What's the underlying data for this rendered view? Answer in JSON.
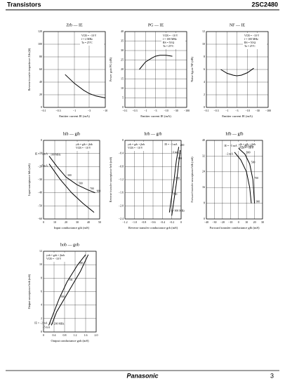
{
  "header": {
    "left": "Transistors",
    "right": "2SC2480"
  },
  "footer": {
    "brand": "Panasonic",
    "page": "3"
  },
  "chart_data": [
    {
      "type": "line",
      "title": "Zrb — IE",
      "x_label": "Emitter current IE (mA)",
      "y_label": "Reverse transfer impedance Zrb (Ω)",
      "xscale": "log",
      "xlim": [
        -0.1,
        -10
      ],
      "xticks": [
        {
          "value": -0.1,
          "label": "−0.1"
        },
        {
          "value": -0.3,
          "label": "−0.3"
        },
        {
          "value": -1,
          "label": "−1"
        },
        {
          "value": -3,
          "label": "−3"
        },
        {
          "value": -10,
          "label": "−10"
        }
      ],
      "ylim": [
        0,
        120
      ],
      "yticks": [
        0,
        20,
        40,
        60,
        80,
        100,
        120
      ],
      "grid": true,
      "note": [
        "VCB = −10 V",
        "f = 2 MHz",
        "Ta = 25°C"
      ],
      "note_corner": "top-right",
      "series": [
        {
          "color": "#000000",
          "x": [
            -0.5,
            -1,
            -2,
            -3,
            -5,
            -10
          ],
          "values": [
            52,
            38,
            27,
            22,
            18,
            15
          ]
        }
      ]
    },
    {
      "type": "line",
      "title": "PG — IE",
      "x_label": "Emitter current IE (mA)",
      "y_label": "Power gain PG (dB)",
      "xscale": "log",
      "xlim": [
        -0.1,
        -100
      ],
      "xticks": [
        {
          "value": -0.1,
          "label": "−0.1"
        },
        {
          "value": -0.3,
          "label": "−0.3"
        },
        {
          "value": -1,
          "label": "−1"
        },
        {
          "value": -3,
          "label": "−3"
        },
        {
          "value": -10,
          "label": "−10"
        },
        {
          "value": -30,
          "label": "−30"
        },
        {
          "value": -100,
          "label": "−100"
        }
      ],
      "ylim": [
        0,
        40
      ],
      "yticks": [
        0,
        5,
        10,
        15,
        20,
        25,
        30,
        35,
        40
      ],
      "grid": true,
      "note": [
        "VCB = −10 V",
        "f = 100 MHz",
        "RS = 50 Ω",
        "Ta = 25°C"
      ],
      "note_corner": "top-right",
      "series": [
        {
          "color": "#000000",
          "x": [
            -0.5,
            -1,
            -2,
            -3,
            -5,
            -10,
            -20
          ],
          "values": [
            20,
            24,
            26,
            27,
            27.5,
            27.5,
            27
          ]
        }
      ]
    },
    {
      "type": "line",
      "title": "NF — IE",
      "x_label": "Emitter current IE (mA)",
      "y_label": "Noise figure NF (dB)",
      "xscale": "log",
      "xlim": [
        -0.1,
        -100
      ],
      "xticks": [
        {
          "value": -0.1,
          "label": "−0.1"
        },
        {
          "value": -0.3,
          "label": "−0.3"
        },
        {
          "value": -1,
          "label": "−1"
        },
        {
          "value": -3,
          "label": "−3"
        },
        {
          "value": -10,
          "label": "−10"
        },
        {
          "value": -30,
          "label": "−30"
        },
        {
          "value": -100,
          "label": "−100"
        }
      ],
      "ylim": [
        0,
        12
      ],
      "yticks": [
        0,
        2,
        4,
        6,
        8,
        10,
        12
      ],
      "grid": true,
      "note": [
        "VCB = −10 V",
        "f = 100 MHz",
        "RS = 50 Ω",
        "Ta = 25°C"
      ],
      "note_corner": "top-right",
      "series": [
        {
          "color": "#000000",
          "x": [
            -0.5,
            -1,
            -2,
            -3,
            -5,
            -10,
            -20
          ],
          "values": [
            6,
            5.4,
            5.1,
            5,
            5.1,
            5.5,
            6.2
          ]
        }
      ]
    },
    {
      "type": "line",
      "title": "hib — gib",
      "x_label": "Input conductance gib (mS)",
      "y_label": "Input susceptance bib (mS)",
      "xscale": "linear",
      "xlim": [
        0,
        50
      ],
      "xticks": [
        0,
        10,
        20,
        30,
        40,
        50
      ],
      "ylim": [
        -60,
        0
      ],
      "yticks": [
        0,
        {
          "value": -10,
          "label": "−10"
        },
        {
          "value": -20,
          "label": "−20"
        },
        {
          "value": -30,
          "label": "−30"
        },
        {
          "value": -40,
          "label": "−40"
        },
        {
          "value": -50,
          "label": "−50"
        },
        {
          "value": -60,
          "label": "−60"
        }
      ],
      "grid": true,
      "note": [
        "yib = gib + jbib",
        "VCB = −10 V"
      ],
      "note_corner": "top-right",
      "series": [
        {
          "name": "IE = −1 mA",
          "color": "#000000",
          "x": [
            5,
            12,
            20,
            30,
            40,
            46
          ],
          "values": [
            -12,
            -20,
            -28,
            -34,
            -38,
            -40
          ],
          "point_labels": [
            "100 MHz",
            null,
            "300",
            "500",
            "700",
            "900"
          ]
        },
        {
          "name": "−5 mA",
          "color": "#000000",
          "x": [
            5,
            15,
            25,
            35,
            45
          ],
          "values": [
            -18,
            -30,
            -40,
            -48,
            -55
          ],
          "point_labels": [
            null,
            null,
            null,
            null,
            null
          ]
        }
      ]
    },
    {
      "type": "line",
      "title": "hrb — grb",
      "x_label": "Reverse transfer conductance grb (mS)",
      "y_label": "Reverse transfer susceptance brb (mS)",
      "xscale": "linear",
      "xlim": [
        -1.2,
        0
      ],
      "xticks": [
        {
          "value": -1.2,
          "label": "−1.2"
        },
        {
          "value": -1,
          "label": "−1.0"
        },
        {
          "value": -0.8,
          "label": "−0.8"
        },
        {
          "value": -0.6,
          "label": "−0.6"
        },
        {
          "value": -0.4,
          "label": "−0.4"
        },
        {
          "value": -0.2,
          "label": "−0.2"
        },
        0
      ],
      "ylim": [
        -2.4,
        0
      ],
      "yticks": [
        0,
        {
          "value": -0.4,
          "label": "−0.4"
        },
        {
          "value": -0.8,
          "label": "−0.8"
        },
        {
          "value": -1.2,
          "label": "−1.2"
        },
        {
          "value": -1.6,
          "label": "−1.6"
        },
        {
          "value": -2,
          "label": "−2.0"
        },
        {
          "value": -2.4,
          "label": "−2.4"
        }
      ],
      "grid": true,
      "note": [
        "yrb = grb + jbrb",
        "VCB = −10 V"
      ],
      "note_corner": "top-left",
      "series": [
        {
          "name": "IE = −1 mA",
          "color": "#000000",
          "x": [
            -0.05,
            -0.1,
            -0.15,
            -0.2,
            -0.25
          ],
          "values": [
            -0.2,
            -0.6,
            -1.2,
            -1.7,
            -2.2
          ],
          "point_labels": [
            "200",
            "300",
            "500",
            "700",
            "f = 900 MHz"
          ]
        },
        {
          "name": "−2 mA",
          "color": "#000000",
          "x": [
            -0.02,
            -0.06,
            -0.1,
            -0.15,
            -0.2
          ],
          "values": [
            -0.3,
            -0.8,
            -1.3,
            -1.8,
            -2.3
          ],
          "point_labels": [
            null,
            null,
            null,
            null,
            null
          ]
        }
      ]
    },
    {
      "type": "line",
      "title": "hfb — gfb",
      "x_label": "Forward transfer conductance gfb (mS)",
      "y_label": "Forward transfer susceptance bfb (mS)",
      "xscale": "linear",
      "xlim": [
        -40,
        30
      ],
      "xticks": [
        {
          "value": -40,
          "label": "−40"
        },
        {
          "value": -30,
          "label": "−30"
        },
        {
          "value": -20,
          "label": "−20"
        },
        {
          "value": -10,
          "label": "−10"
        },
        0,
        10,
        20,
        30
      ],
      "ylim": [
        0,
        40
      ],
      "yticks": [
        0,
        8,
        16,
        24,
        32,
        40
      ],
      "grid": true,
      "note": [
        "yfb = gfb + jbfb",
        "VCB = −10 V"
      ],
      "note_corner": "top-right",
      "series": [
        {
          "name": "IE = −5 mA",
          "color": "#000000",
          "x": [
            0,
            8,
            14,
            18,
            20
          ],
          "values": [
            36,
            33,
            28,
            20,
            8
          ],
          "point_labels": [
            "f = 200 MHz",
            "300",
            "500",
            "700",
            "900"
          ]
        },
        {
          "name": "−2 mA",
          "color": "#000000",
          "x": [
            -5,
            3,
            10,
            14,
            16
          ],
          "values": [
            34,
            30,
            24,
            16,
            8
          ],
          "point_labels": [
            null,
            null,
            null,
            null,
            null
          ]
        }
      ]
    },
    {
      "type": "line",
      "title": "hob — gob",
      "x_label": "Output conductance gob (mS)",
      "y_label": "Output susceptance bob (mS)",
      "xscale": "linear",
      "xlim": [
        0,
        2
      ],
      "xticks": [
        0,
        0.4,
        0.8,
        1.2,
        1.6,
        {
          "value": 2,
          "label": "2.0"
        }
      ],
      "ylim": [
        0,
        12
      ],
      "yticks": [
        0,
        2,
        4,
        6,
        8,
        10,
        12
      ],
      "grid": true,
      "note": [
        "yob = gob + jbob",
        "VCB = −10 V"
      ],
      "note_corner": "top-left",
      "series": [
        {
          "name": "IE = −2 mA",
          "color": "#000000",
          "x": [
            0.2,
            0.4,
            0.6,
            0.9,
            1.3,
            1.6
          ],
          "values": [
            1,
            3,
            5,
            7.5,
            10,
            11.5
          ],
          "point_labels": [
            "f = 200 MHz",
            null,
            "500",
            "700",
            "900",
            null
          ]
        },
        {
          "name": "−5 mA",
          "color": "#000000",
          "x": [
            0.3,
            0.5,
            0.8,
            1.1,
            1.4,
            1.7
          ],
          "values": [
            1,
            3,
            5,
            7,
            9,
            11.5
          ],
          "point_labels": [
            null,
            null,
            null,
            null,
            null,
            null
          ]
        }
      ]
    }
  ]
}
